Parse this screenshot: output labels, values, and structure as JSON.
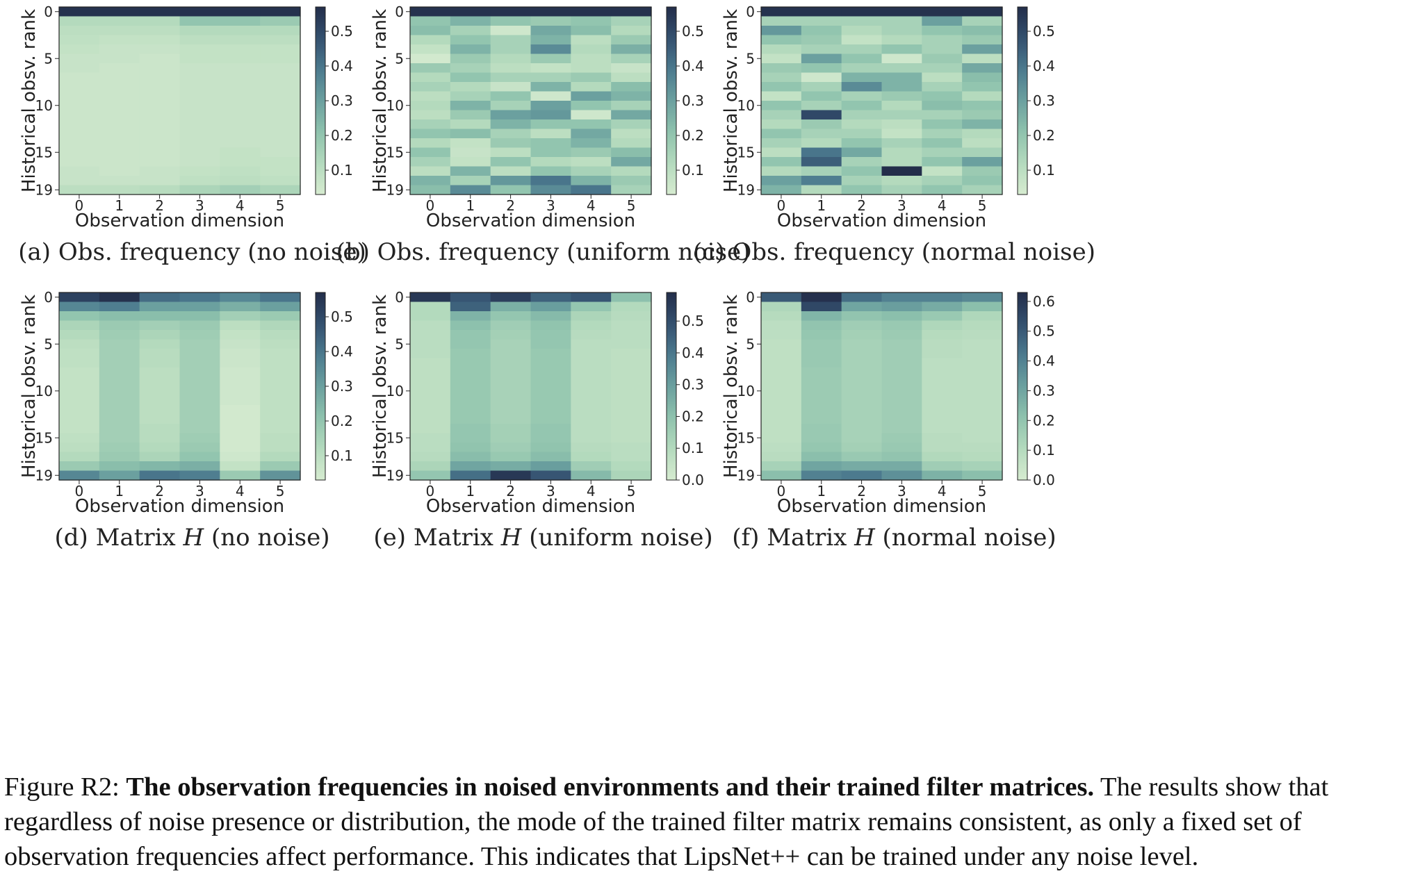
{
  "colormap": [
    "#d6ebd0",
    "#b4dabd",
    "#8ec2ad",
    "#6ba09f",
    "#4c7a8e",
    "#34506f",
    "#232e4a"
  ],
  "common": {
    "xlabel": "Observation dimension",
    "ylabel": "Historical obsv. rank",
    "xticks": [
      0,
      1,
      2,
      3,
      4,
      5
    ],
    "yticks": [
      0,
      5,
      10,
      15,
      19
    ]
  },
  "chart_data": [
    {
      "type": "heatmap",
      "label": "(a)",
      "title_parts": [
        "Obs. frequency (no noise)"
      ],
      "vmin": 0.03,
      "vmax": 0.57,
      "colorbar_ticks": [
        "0.1",
        "0.2",
        "0.3",
        "0.4",
        "0.5"
      ],
      "matrix": [
        [
          0.56,
          0.56,
          0.56,
          0.56,
          0.56,
          0.56
        ],
        [
          0.12,
          0.12,
          0.12,
          0.2,
          0.2,
          0.18
        ],
        [
          0.1,
          0.1,
          0.1,
          0.12,
          0.12,
          0.12
        ],
        [
          0.09,
          0.08,
          0.08,
          0.1,
          0.1,
          0.1
        ],
        [
          0.08,
          0.07,
          0.07,
          0.08,
          0.08,
          0.08
        ],
        [
          0.07,
          0.07,
          0.06,
          0.08,
          0.08,
          0.08
        ],
        [
          0.07,
          0.06,
          0.06,
          0.07,
          0.07,
          0.07
        ],
        [
          0.06,
          0.06,
          0.06,
          0.07,
          0.07,
          0.07
        ],
        [
          0.06,
          0.06,
          0.06,
          0.07,
          0.07,
          0.07
        ],
        [
          0.06,
          0.06,
          0.06,
          0.07,
          0.07,
          0.07
        ],
        [
          0.06,
          0.06,
          0.06,
          0.07,
          0.07,
          0.07
        ],
        [
          0.06,
          0.06,
          0.06,
          0.07,
          0.07,
          0.07
        ],
        [
          0.06,
          0.06,
          0.06,
          0.07,
          0.07,
          0.07
        ],
        [
          0.06,
          0.06,
          0.06,
          0.07,
          0.07,
          0.07
        ],
        [
          0.06,
          0.06,
          0.06,
          0.07,
          0.07,
          0.07
        ],
        [
          0.06,
          0.06,
          0.06,
          0.07,
          0.08,
          0.07
        ],
        [
          0.06,
          0.06,
          0.06,
          0.07,
          0.08,
          0.08
        ],
        [
          0.07,
          0.06,
          0.07,
          0.08,
          0.09,
          0.08
        ],
        [
          0.07,
          0.07,
          0.07,
          0.09,
          0.1,
          0.09
        ],
        [
          0.1,
          0.1,
          0.11,
          0.14,
          0.16,
          0.14
        ]
      ]
    },
    {
      "type": "heatmap",
      "label": "(b)",
      "title_parts": [
        "Obs. frequency (uniform noise)"
      ],
      "vmin": 0.03,
      "vmax": 0.57,
      "colorbar_ticks": [
        "0.1",
        "0.2",
        "0.3",
        "0.4",
        "0.5"
      ],
      "matrix": [
        [
          0.56,
          0.56,
          0.56,
          0.56,
          0.56,
          0.56
        ],
        [
          0.2,
          0.25,
          0.2,
          0.18,
          0.2,
          0.15
        ],
        [
          0.22,
          0.15,
          0.05,
          0.28,
          0.22,
          0.12
        ],
        [
          0.12,
          0.2,
          0.15,
          0.25,
          0.1,
          0.18
        ],
        [
          0.08,
          0.25,
          0.15,
          0.35,
          0.12,
          0.26
        ],
        [
          0.04,
          0.18,
          0.12,
          0.18,
          0.1,
          0.15
        ],
        [
          0.18,
          0.15,
          0.1,
          0.08,
          0.1,
          0.07
        ],
        [
          0.12,
          0.2,
          0.15,
          0.15,
          0.18,
          0.1
        ],
        [
          0.15,
          0.12,
          0.07,
          0.25,
          0.12,
          0.22
        ],
        [
          0.1,
          0.15,
          0.2,
          0.05,
          0.3,
          0.25
        ],
        [
          0.12,
          0.25,
          0.15,
          0.3,
          0.2,
          0.15
        ],
        [
          0.1,
          0.18,
          0.3,
          0.32,
          0.05,
          0.28
        ],
        [
          0.15,
          0.12,
          0.25,
          0.2,
          0.2,
          0.15
        ],
        [
          0.2,
          0.22,
          0.15,
          0.1,
          0.28,
          0.1
        ],
        [
          0.12,
          0.08,
          0.18,
          0.2,
          0.25,
          0.12
        ],
        [
          0.2,
          0.07,
          0.1,
          0.2,
          0.18,
          0.22
        ],
        [
          0.15,
          0.08,
          0.2,
          0.12,
          0.1,
          0.28
        ],
        [
          0.1,
          0.25,
          0.1,
          0.2,
          0.15,
          0.12
        ],
        [
          0.25,
          0.15,
          0.32,
          0.4,
          0.25,
          0.18
        ],
        [
          0.22,
          0.35,
          0.2,
          0.35,
          0.4,
          0.15
        ]
      ]
    },
    {
      "type": "heatmap",
      "label": "(c)",
      "title_parts": [
        "Obs. frequency (normal noise)"
      ],
      "vmin": 0.03,
      "vmax": 0.57,
      "colorbar_ticks": [
        "0.1",
        "0.2",
        "0.3",
        "0.4",
        "0.5"
      ],
      "matrix": [
        [
          0.56,
          0.56,
          0.56,
          0.56,
          0.56,
          0.56
        ],
        [
          0.15,
          0.15,
          0.15,
          0.15,
          0.3,
          0.15
        ],
        [
          0.32,
          0.2,
          0.12,
          0.15,
          0.2,
          0.22
        ],
        [
          0.2,
          0.18,
          0.08,
          0.12,
          0.15,
          0.18
        ],
        [
          0.12,
          0.15,
          0.15,
          0.2,
          0.15,
          0.3
        ],
        [
          0.08,
          0.3,
          0.2,
          0.05,
          0.18,
          0.1
        ],
        [
          0.18,
          0.2,
          0.15,
          0.15,
          0.15,
          0.28
        ],
        [
          0.15,
          0.05,
          0.25,
          0.25,
          0.1,
          0.22
        ],
        [
          0.2,
          0.15,
          0.35,
          0.25,
          0.15,
          0.2
        ],
        [
          0.08,
          0.2,
          0.15,
          0.18,
          0.2,
          0.12
        ],
        [
          0.2,
          0.15,
          0.2,
          0.12,
          0.22,
          0.2
        ],
        [
          0.15,
          0.5,
          0.15,
          0.15,
          0.15,
          0.18
        ],
        [
          0.12,
          0.18,
          0.12,
          0.1,
          0.2,
          0.25
        ],
        [
          0.2,
          0.15,
          0.15,
          0.08,
          0.15,
          0.12
        ],
        [
          0.15,
          0.12,
          0.2,
          0.15,
          0.2,
          0.1
        ],
        [
          0.1,
          0.4,
          0.28,
          0.12,
          0.15,
          0.15
        ],
        [
          0.2,
          0.45,
          0.15,
          0.12,
          0.2,
          0.3
        ],
        [
          0.12,
          0.15,
          0.2,
          0.57,
          0.08,
          0.18
        ],
        [
          0.3,
          0.38,
          0.15,
          0.12,
          0.15,
          0.2
        ],
        [
          0.25,
          0.12,
          0.2,
          0.15,
          0.2,
          0.15
        ]
      ]
    },
    {
      "type": "heatmap",
      "label": "(d)",
      "title_parts": [
        "Matrix ",
        "H",
        " (no noise)"
      ],
      "vmin": 0.03,
      "vmax": 0.57,
      "colorbar_ticks": [
        "0.1",
        "0.2",
        "0.3",
        "0.4",
        "0.5"
      ],
      "matrix": [
        [
          0.52,
          0.56,
          0.42,
          0.4,
          0.36,
          0.4
        ],
        [
          0.36,
          0.38,
          0.3,
          0.3,
          0.26,
          0.3
        ],
        [
          0.2,
          0.22,
          0.22,
          0.22,
          0.16,
          0.18
        ],
        [
          0.14,
          0.18,
          0.16,
          0.18,
          0.1,
          0.13
        ],
        [
          0.12,
          0.17,
          0.14,
          0.17,
          0.08,
          0.11
        ],
        [
          0.1,
          0.16,
          0.12,
          0.16,
          0.07,
          0.1
        ],
        [
          0.09,
          0.16,
          0.11,
          0.16,
          0.06,
          0.09
        ],
        [
          0.09,
          0.16,
          0.11,
          0.16,
          0.06,
          0.09
        ],
        [
          0.08,
          0.16,
          0.1,
          0.16,
          0.05,
          0.09
        ],
        [
          0.08,
          0.16,
          0.1,
          0.16,
          0.05,
          0.09
        ],
        [
          0.08,
          0.16,
          0.1,
          0.16,
          0.05,
          0.09
        ],
        [
          0.08,
          0.16,
          0.1,
          0.16,
          0.05,
          0.09
        ],
        [
          0.08,
          0.16,
          0.1,
          0.16,
          0.04,
          0.09
        ],
        [
          0.08,
          0.16,
          0.1,
          0.16,
          0.04,
          0.09
        ],
        [
          0.08,
          0.16,
          0.11,
          0.16,
          0.04,
          0.09
        ],
        [
          0.09,
          0.16,
          0.11,
          0.17,
          0.04,
          0.1
        ],
        [
          0.1,
          0.17,
          0.12,
          0.18,
          0.04,
          0.1
        ],
        [
          0.12,
          0.18,
          0.14,
          0.2,
          0.05,
          0.12
        ],
        [
          0.18,
          0.22,
          0.24,
          0.26,
          0.08,
          0.18
        ],
        [
          0.36,
          0.3,
          0.4,
          0.38,
          0.18,
          0.33
        ]
      ]
    },
    {
      "type": "heatmap",
      "label": "(e)",
      "title_parts": [
        "Matrix ",
        "H",
        " (uniform noise)"
      ],
      "vmin": 0.0,
      "vmax": 0.59,
      "colorbar_ticks": [
        "0.0",
        "0.1",
        "0.2",
        "0.3",
        "0.4",
        "0.5"
      ],
      "matrix": [
        [
          0.56,
          0.48,
          0.54,
          0.45,
          0.48,
          0.2
        ],
        [
          0.1,
          0.45,
          0.25,
          0.3,
          0.18,
          0.1
        ],
        [
          0.1,
          0.24,
          0.18,
          0.22,
          0.12,
          0.09
        ],
        [
          0.08,
          0.2,
          0.15,
          0.19,
          0.1,
          0.08
        ],
        [
          0.08,
          0.18,
          0.14,
          0.18,
          0.09,
          0.08
        ],
        [
          0.08,
          0.18,
          0.13,
          0.18,
          0.08,
          0.08
        ],
        [
          0.08,
          0.17,
          0.13,
          0.17,
          0.08,
          0.07
        ],
        [
          0.07,
          0.17,
          0.13,
          0.17,
          0.08,
          0.07
        ],
        [
          0.07,
          0.17,
          0.13,
          0.17,
          0.08,
          0.07
        ],
        [
          0.07,
          0.17,
          0.13,
          0.17,
          0.08,
          0.07
        ],
        [
          0.07,
          0.17,
          0.13,
          0.17,
          0.08,
          0.07
        ],
        [
          0.07,
          0.17,
          0.13,
          0.17,
          0.08,
          0.07
        ],
        [
          0.07,
          0.17,
          0.13,
          0.17,
          0.08,
          0.07
        ],
        [
          0.07,
          0.17,
          0.13,
          0.17,
          0.08,
          0.07
        ],
        [
          0.07,
          0.18,
          0.14,
          0.18,
          0.08,
          0.07
        ],
        [
          0.08,
          0.18,
          0.14,
          0.18,
          0.08,
          0.07
        ],
        [
          0.08,
          0.19,
          0.15,
          0.19,
          0.09,
          0.08
        ],
        [
          0.09,
          0.21,
          0.17,
          0.21,
          0.1,
          0.08
        ],
        [
          0.12,
          0.28,
          0.26,
          0.3,
          0.15,
          0.1
        ],
        [
          0.18,
          0.42,
          0.56,
          0.48,
          0.22,
          0.12
        ]
      ]
    },
    {
      "type": "heatmap",
      "label": "(f)",
      "title_parts": [
        "Matrix ",
        "H",
        " (normal noise)"
      ],
      "vmin": 0.0,
      "vmax": 0.63,
      "colorbar_ticks": [
        "0.0",
        "0.1",
        "0.2",
        "0.3",
        "0.4",
        "0.5",
        "0.6"
      ],
      "matrix": [
        [
          0.5,
          0.62,
          0.45,
          0.4,
          0.4,
          0.38
        ],
        [
          0.12,
          0.55,
          0.3,
          0.32,
          0.28,
          0.22
        ],
        [
          0.1,
          0.25,
          0.2,
          0.22,
          0.18,
          0.12
        ],
        [
          0.08,
          0.2,
          0.16,
          0.18,
          0.12,
          0.1
        ],
        [
          0.08,
          0.19,
          0.15,
          0.17,
          0.1,
          0.09
        ],
        [
          0.07,
          0.18,
          0.14,
          0.16,
          0.09,
          0.08
        ],
        [
          0.07,
          0.18,
          0.14,
          0.16,
          0.09,
          0.08
        ],
        [
          0.07,
          0.18,
          0.14,
          0.16,
          0.08,
          0.08
        ],
        [
          0.07,
          0.17,
          0.14,
          0.16,
          0.08,
          0.08
        ],
        [
          0.07,
          0.17,
          0.14,
          0.16,
          0.08,
          0.08
        ],
        [
          0.07,
          0.17,
          0.14,
          0.16,
          0.08,
          0.08
        ],
        [
          0.07,
          0.17,
          0.14,
          0.16,
          0.08,
          0.08
        ],
        [
          0.07,
          0.17,
          0.14,
          0.16,
          0.08,
          0.08
        ],
        [
          0.07,
          0.17,
          0.14,
          0.16,
          0.08,
          0.08
        ],
        [
          0.07,
          0.18,
          0.14,
          0.16,
          0.08,
          0.08
        ],
        [
          0.07,
          0.18,
          0.14,
          0.17,
          0.09,
          0.08
        ],
        [
          0.08,
          0.19,
          0.15,
          0.18,
          0.09,
          0.09
        ],
        [
          0.09,
          0.22,
          0.18,
          0.2,
          0.11,
          0.1
        ],
        [
          0.14,
          0.3,
          0.28,
          0.28,
          0.16,
          0.14
        ],
        [
          0.22,
          0.4,
          0.42,
          0.36,
          0.26,
          0.22
        ]
      ]
    }
  ],
  "caption": {
    "prefix": "Figure R2: ",
    "bold": "The observation frequencies in noised environments and their trained filter matrices.",
    "rest": " The results show that regardless of noise presence or distribution, the mode of the trained filter matrix remains consistent, as only a fixed set of observation frequencies affect performance. This indicates that LipsNet++ can be trained under any noise level."
  }
}
